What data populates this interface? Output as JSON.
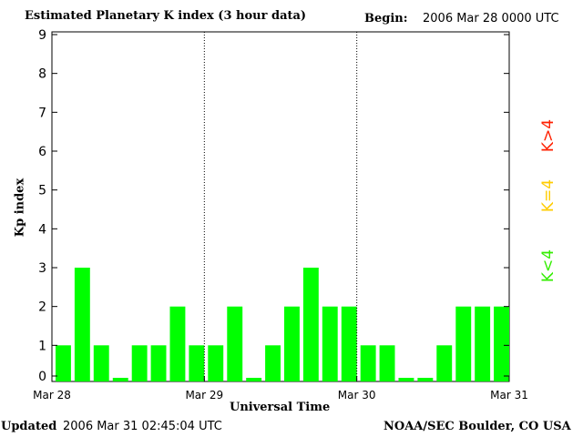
{
  "header": {
    "title": "Estimated Planetary K index (3 hour data)",
    "begin_label": "Begin:",
    "begin_value": "2006 Mar 28 0000 UTC"
  },
  "footer": {
    "updated_label": "Updated",
    "updated_value": "2006 Mar 31 02:45:04 UTC",
    "source": "NOAA/SEC Boulder, CO USA"
  },
  "legend": [
    {
      "label": "K>4",
      "color": "#ff2000"
    },
    {
      "label": "K=4",
      "color": "#ffcc00"
    },
    {
      "label": "K<4",
      "color": "#33ee00"
    }
  ],
  "chart_data": {
    "type": "bar",
    "title": "Estimated Planetary K index (3 hour data)",
    "xlabel": "Universal Time",
    "ylabel": "Kp index",
    "ylim": [
      0,
      9
    ],
    "yticks": [
      "0",
      "1",
      "2",
      "3",
      "4",
      "5",
      "6",
      "7",
      "8",
      "9"
    ],
    "xticks": [
      "Mar 28",
      "Mar 29",
      "Mar 30",
      "Mar 31"
    ],
    "day_separators": [
      "Mar 29",
      "Mar 30"
    ],
    "bar_color": "#00ff00",
    "values": [
      1,
      3,
      1,
      0,
      1,
      1,
      2,
      1,
      1,
      2,
      0,
      1,
      2,
      3,
      2,
      2,
      1,
      1,
      0,
      0,
      1,
      2,
      2,
      2
    ]
  }
}
